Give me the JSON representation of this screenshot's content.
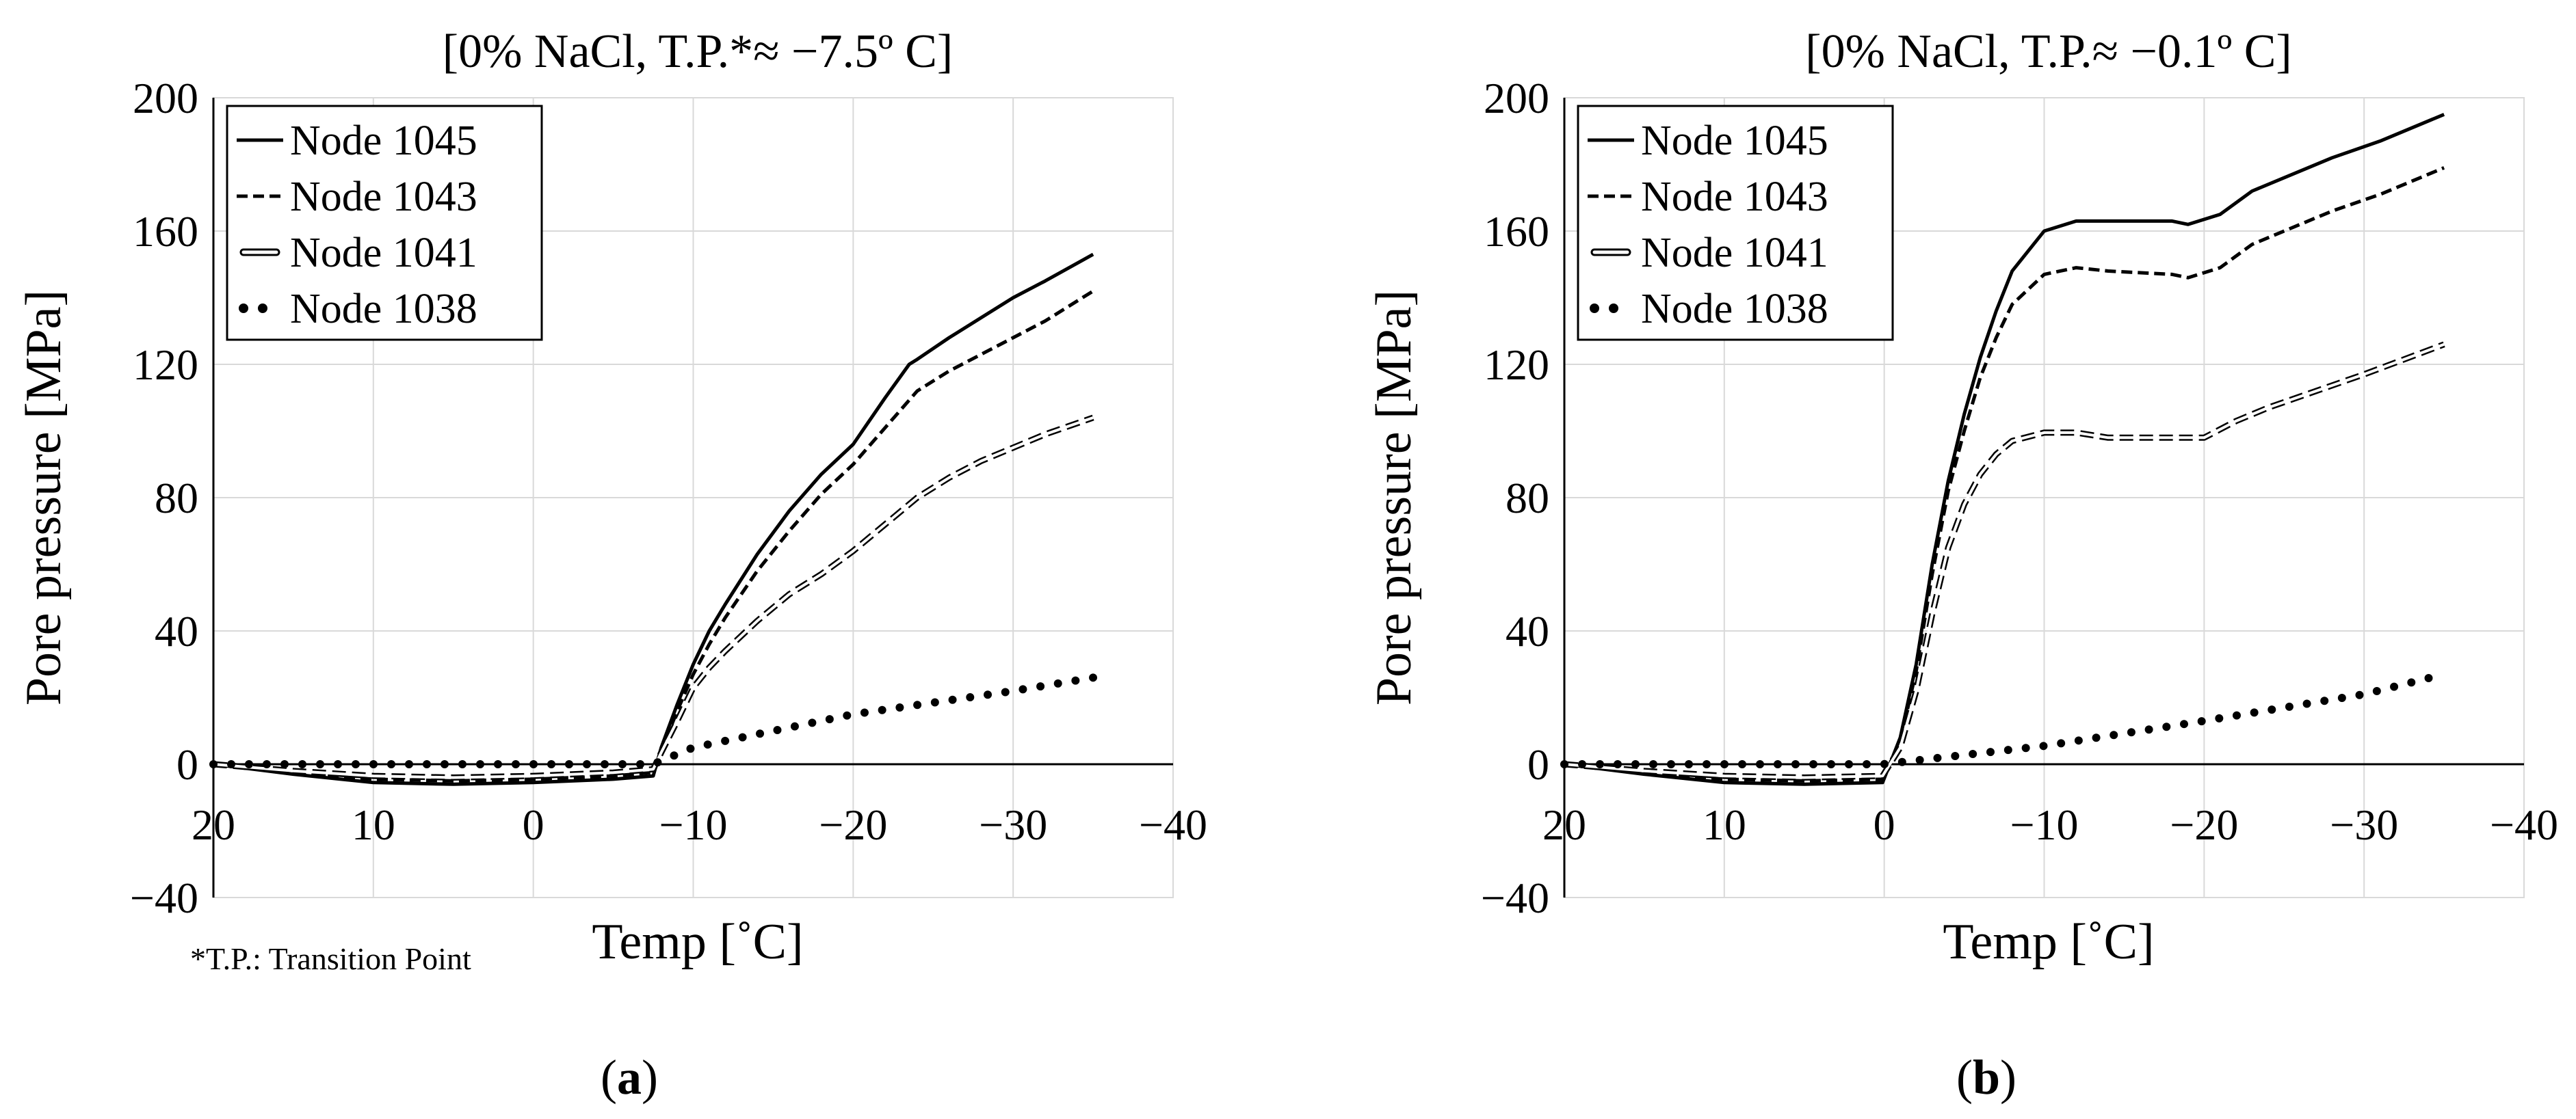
{
  "figure_note": "*T.P.: Transition Point",
  "chart_data": [
    {
      "type": "line",
      "panel_label": "(a)",
      "panel_paren_open": "(",
      "panel_letter": "a",
      "panel_paren_close": ")",
      "title": "[0% NaCl, T.P.*≈ −7.5º C]",
      "xlabel": "Temp [˚C]",
      "ylabel": "Pore pressure [MPa]",
      "xlim": [
        20,
        -40
      ],
      "ylim": [
        -40,
        200
      ],
      "x_ticks": [
        20,
        10,
        0,
        -10,
        -20,
        -30,
        -40
      ],
      "x_tick_labels": [
        "20",
        "10",
        "0",
        "−10",
        "−20",
        "−30",
        "−40"
      ],
      "y_ticks": [
        -40,
        0,
        40,
        80,
        120,
        160,
        200
      ],
      "y_tick_labels": [
        "−40",
        "0",
        "40",
        "80",
        "120",
        "160",
        "200"
      ],
      "grid": true,
      "legend_position": "top-left",
      "series": [
        {
          "name": "Node 1045",
          "style": "solid",
          "x": [
            20,
            15,
            10,
            5,
            0,
            -5,
            -7.5,
            -8,
            -9,
            -10,
            -11,
            -12,
            -14,
            -16,
            -18,
            -20,
            -22,
            -23.5,
            -24,
            -26,
            -28,
            -30,
            -32,
            -35
          ],
          "y": [
            0,
            -3,
            -5.5,
            -6,
            -5.5,
            -4.5,
            -3.5,
            5,
            18,
            30,
            40,
            48,
            63,
            76,
            87,
            96,
            110,
            120,
            121.5,
            128,
            134,
            140,
            145,
            153
          ]
        },
        {
          "name": "Node 1043",
          "style": "dashed",
          "x": [
            20,
            15,
            10,
            5,
            0,
            -5,
            -7.5,
            -8,
            -9,
            -10,
            -11,
            -12,
            -14,
            -16,
            -18,
            -20,
            -22,
            -24,
            -26,
            -28,
            -30,
            -32,
            -35
          ],
          "y": [
            0,
            -2.5,
            -4.5,
            -5,
            -4.5,
            -3.5,
            -2.5,
            4,
            16,
            27,
            36,
            44,
            58,
            70,
            81,
            90,
            101,
            112,
            118,
            123,
            128,
            133,
            142
          ]
        },
        {
          "name": "Node 1041",
          "style": "double",
          "x": [
            20,
            15,
            10,
            5,
            0,
            -5,
            -7.5,
            -8,
            -9,
            -10,
            -11,
            -12,
            -14,
            -16,
            -18,
            -20,
            -22,
            -24,
            -26,
            -28,
            -30,
            -32,
            -35
          ],
          "y": [
            0,
            -2,
            -3.5,
            -4,
            -3.5,
            -2.5,
            -1.5,
            3.5,
            13,
            23,
            29,
            34,
            43,
            51,
            57,
            64,
            72,
            80,
            86,
            91,
            95,
            99,
            104
          ]
        },
        {
          "name": "Node 1038",
          "style": "dotted",
          "x": [
            20,
            10,
            0,
            -5,
            -7.5,
            -10,
            -20,
            -30,
            -35
          ],
          "y": [
            0,
            0,
            0,
            0,
            0,
            5,
            15,
            22,
            26
          ]
        }
      ]
    },
    {
      "type": "line",
      "panel_label": "(b)",
      "panel_paren_open": "(",
      "panel_letter": "b",
      "panel_paren_close": ")",
      "title": "[0% NaCl, T.P.≈ −0.1º C]",
      "xlabel": "Temp [˚C]",
      "ylabel": "Pore pressure [MPa]",
      "xlim": [
        20,
        -40
      ],
      "ylim": [
        -40,
        200
      ],
      "x_ticks": [
        20,
        10,
        0,
        -10,
        -20,
        -30,
        -40
      ],
      "x_tick_labels": [
        "20",
        "10",
        "0",
        "−10",
        "−20",
        "−30",
        "−40"
      ],
      "y_ticks": [
        -40,
        0,
        40,
        80,
        120,
        160,
        200
      ],
      "y_tick_labels": [
        "−40",
        "0",
        "40",
        "80",
        "120",
        "160",
        "200"
      ],
      "grid": true,
      "legend_position": "top-left",
      "series": [
        {
          "name": "Node 1045",
          "style": "solid",
          "x": [
            20,
            15,
            10,
            5,
            0.1,
            -1,
            -2,
            -3,
            -4,
            -5,
            -6,
            -7,
            -8,
            -10,
            -12,
            -14,
            -18,
            -19,
            -21,
            -23,
            -26,
            -28,
            -31,
            -35
          ],
          "y": [
            0,
            -3,
            -5.5,
            -6,
            -5.5,
            8,
            30,
            60,
            85,
            105,
            122,
            136,
            148,
            160,
            163,
            163,
            163,
            162,
            165,
            172,
            178,
            182,
            187,
            195
          ]
        },
        {
          "name": "Node 1043",
          "style": "dashed",
          "x": [
            20,
            15,
            10,
            5,
            0.1,
            -1,
            -2,
            -3,
            -4,
            -5,
            -6,
            -7,
            -8,
            -10,
            -12,
            -14,
            -18,
            -19,
            -21,
            -23,
            -26,
            -28,
            -31,
            -35
          ],
          "y": [
            0,
            -2.5,
            -4.5,
            -5,
            -4.5,
            7,
            28,
            57,
            82,
            100,
            116,
            128,
            138,
            147,
            149,
            148,
            147,
            146,
            149,
            156,
            162,
            166,
            171,
            179
          ]
        },
        {
          "name": "Node 1041",
          "style": "double",
          "x": [
            20,
            15,
            10,
            5,
            0.1,
            -1,
            -2,
            -3,
            -4,
            -5,
            -6,
            -7,
            -8,
            -10,
            -12,
            -14,
            -18,
            -20,
            -22,
            -24,
            -27,
            -30,
            -35
          ],
          "y": [
            0,
            -2,
            -3.5,
            -4,
            -3.5,
            5,
            22,
            45,
            65,
            78,
            87,
            93,
            97,
            99.5,
            99.5,
            98,
            98,
            98,
            103,
            107,
            112,
            117,
            126
          ]
        },
        {
          "name": "Node 1038",
          "style": "dotted",
          "x": [
            20,
            10,
            0.1,
            -10,
            -20,
            -30,
            -35
          ],
          "y": [
            0,
            0,
            0,
            5.5,
            13,
            21,
            27
          ]
        }
      ]
    }
  ]
}
